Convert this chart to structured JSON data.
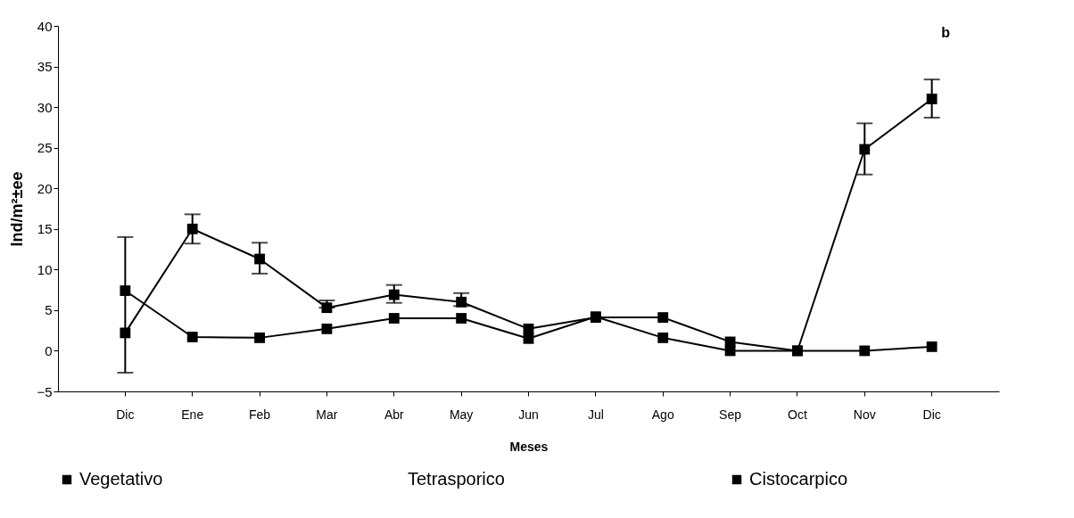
{
  "chart_data": {
    "type": "line",
    "xlabel": "Meses",
    "ylabel": "Ind/m²±ee",
    "annotations": [
      "b"
    ],
    "categories": [
      "Dic",
      "Ene",
      "Feb",
      "Mar",
      "Abr",
      "May",
      "Jun",
      "Jul",
      "Ago",
      "Sep",
      "Oct",
      "Nov",
      "Dic"
    ],
    "ylim": [
      -5,
      40
    ],
    "yticks": [
      -5,
      0,
      5,
      10,
      15,
      20,
      25,
      30,
      35,
      40
    ],
    "grid": false,
    "legend": "bottom",
    "marker": "square",
    "line_style": "solid",
    "series": [
      {
        "name": "Vegetativo",
        "color": "#000000",
        "values": [
          2.2,
          15,
          11.3,
          5.3,
          6.9,
          6,
          2.7,
          4.1,
          4.1,
          1.1,
          0,
          24.8,
          31
        ],
        "errors": [
          null,
          [
            13.2,
            16.8
          ],
          [
            9.5,
            13.3
          ],
          [
            5.3,
            6.2
          ],
          [
            5.9,
            8.1
          ],
          [
            5.5,
            7.1
          ],
          null,
          null,
          null,
          null,
          null,
          [
            21.7,
            28
          ],
          [
            28.7,
            33.4
          ]
        ]
      },
      {
        "name": "Tetrasporico",
        "values": [
          null,
          null,
          null,
          null,
          null,
          null,
          null,
          null,
          null,
          null,
          null,
          null,
          null
        ]
      },
      {
        "name": "Cistocarpico",
        "color": "#000000",
        "values": [
          7.4,
          1.7,
          1.6,
          2.7,
          4,
          4,
          1.5,
          4.2,
          1.6,
          0,
          0,
          0,
          0.5
        ],
        "errors": [
          [
            -2.7,
            14
          ],
          null,
          null,
          null,
          null,
          null,
          null,
          null,
          null,
          null,
          null,
          null,
          null
        ]
      }
    ]
  }
}
